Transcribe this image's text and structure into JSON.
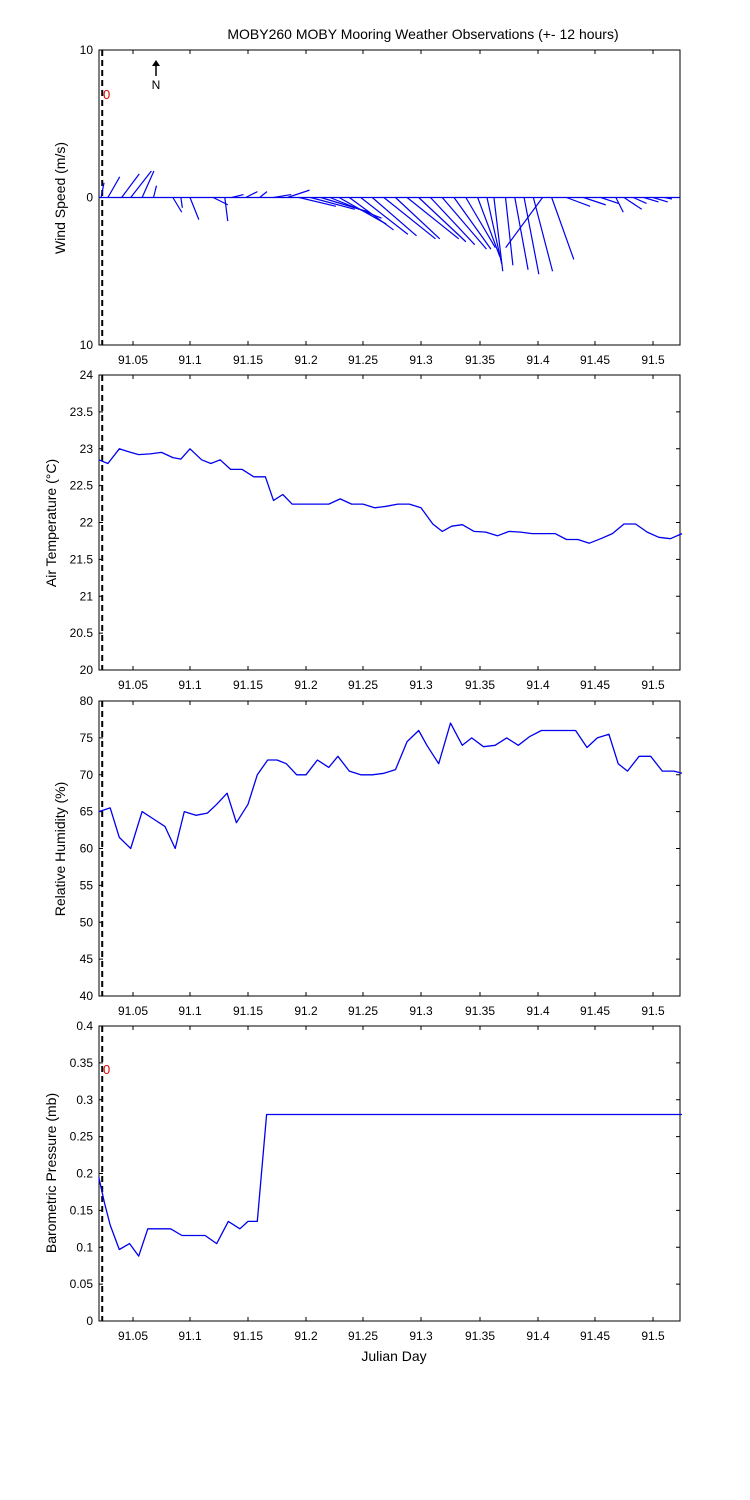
{
  "title": "MOBY260 MOBY Mooring Weather Observations (+- 12 hours)",
  "xlabel": "Julian Day",
  "north_label": "N",
  "zero_marker_label": "0",
  "colors": {
    "series": "#0000ee",
    "marker": "#000000",
    "zero_label": "#e00000"
  },
  "chart_data": [
    {
      "type": "line",
      "name": "wind",
      "ylabel": "Wind Speed (m/s)",
      "xlim": [
        91.02,
        91.525
      ],
      "ylim": [
        -10,
        10
      ],
      "yticks": [
        10,
        0,
        10
      ],
      "xticks": [
        "91.05",
        "91.1",
        "91.15",
        "91.2",
        "91.25",
        "91.3",
        "91.35",
        "91.4",
        "91.45",
        "91.5"
      ],
      "marker_x": 91.023,
      "grid": false,
      "vectors": [
        {
          "x": 91.022,
          "u": 0.2,
          "v": 1.0
        },
        {
          "x": 91.028,
          "u": 0.8,
          "v": 1.4
        },
        {
          "x": 91.04,
          "u": 1.2,
          "v": 1.6
        },
        {
          "x": 91.048,
          "u": 1.4,
          "v": 1.8
        },
        {
          "x": 91.058,
          "u": 0.8,
          "v": 1.8
        },
        {
          "x": 91.068,
          "u": 0.2,
          "v": 0.8
        },
        {
          "x": 91.085,
          "u": 0.6,
          "v": -1.0
        },
        {
          "x": 91.092,
          "u": 0.1,
          "v": -0.7
        },
        {
          "x": 91.1,
          "u": 0.6,
          "v": -1.5
        },
        {
          "x": 91.12,
          "u": 1.0,
          "v": -0.5
        },
        {
          "x": 91.13,
          "u": 0.2,
          "v": -1.6
        },
        {
          "x": 91.136,
          "u": 0.8,
          "v": 0.2
        },
        {
          "x": 91.148,
          "u": 0.8,
          "v": 0.4
        },
        {
          "x": 91.16,
          "u": 0.5,
          "v": 0.4
        },
        {
          "x": 91.172,
          "u": 1.2,
          "v": 0.2
        },
        {
          "x": 91.184,
          "u": 1.5,
          "v": 0.5
        },
        {
          "x": 91.194,
          "u": 2.5,
          "v": -0.6
        },
        {
          "x": 91.204,
          "u": 3.0,
          "v": -0.8
        },
        {
          "x": 91.213,
          "u": 3.3,
          "v": -1.0
        },
        {
          "x": 91.221,
          "u": 3.5,
          "v": -1.4
        },
        {
          "x": 91.229,
          "u": 3.2,
          "v": -1.8
        },
        {
          "x": 91.238,
          "u": 3.0,
          "v": -2.2
        },
        {
          "x": 91.248,
          "u": 3.2,
          "v": -2.5
        },
        {
          "x": 91.258,
          "u": 3.0,
          "v": -2.6
        },
        {
          "x": 91.268,
          "u": 3.5,
          "v": -2.8
        },
        {
          "x": 91.278,
          "u": 3.0,
          "v": -2.8
        },
        {
          "x": 91.288,
          "u": 3.5,
          "v": -2.8
        },
        {
          "x": 91.298,
          "u": 3.2,
          "v": -3.0
        },
        {
          "x": 91.308,
          "u": 3.0,
          "v": -3.2
        },
        {
          "x": 91.318,
          "u": 3.0,
          "v": -3.5
        },
        {
          "x": 91.328,
          "u": 2.5,
          "v": -3.5
        },
        {
          "x": 91.338,
          "u": 2.0,
          "v": -3.4
        },
        {
          "x": 91.348,
          "u": 1.5,
          "v": -4.0
        },
        {
          "x": 91.356,
          "u": 1.0,
          "v": -4.5
        },
        {
          "x": 91.362,
          "u": 0.6,
          "v": -5.0
        },
        {
          "x": 91.372,
          "u": 0.5,
          "v": -4.6
        },
        {
          "x": 91.38,
          "u": 0.9,
          "v": -4.9
        },
        {
          "x": 91.388,
          "u": 1.0,
          "v": -5.2
        },
        {
          "x": 91.396,
          "u": 1.3,
          "v": -5.0
        },
        {
          "x": 91.404,
          "u": -2.5,
          "v": -3.4
        },
        {
          "x": 91.412,
          "u": 1.5,
          "v": -4.2
        },
        {
          "x": 91.425,
          "u": 1.6,
          "v": -0.6
        },
        {
          "x": 91.44,
          "u": 1.5,
          "v": -0.5
        },
        {
          "x": 91.455,
          "u": 1.2,
          "v": -0.4
        },
        {
          "x": 91.468,
          "u": 0.5,
          "v": -1.0
        },
        {
          "x": 91.475,
          "u": 1.2,
          "v": -0.8
        },
        {
          "x": 91.483,
          "u": 0.9,
          "v": -0.4
        },
        {
          "x": 91.492,
          "u": 1.0,
          "v": -0.3
        },
        {
          "x": 91.5,
          "u": 1.0,
          "v": -0.3
        },
        {
          "x": 91.51,
          "u": 0.5,
          "v": -0.1
        }
      ]
    },
    {
      "type": "line",
      "name": "air_temp",
      "ylabel": "Air Temperature (°C)",
      "xlim": [
        91.02,
        91.525
      ],
      "ylim": [
        20,
        24
      ],
      "yticks": [
        "20",
        "20.5",
        "21",
        "21.5",
        "22",
        "22.5",
        "23",
        "23.5",
        "24"
      ],
      "xticks": [
        "91.05",
        "91.1",
        "91.15",
        "91.2",
        "91.25",
        "91.3",
        "91.35",
        "91.4",
        "91.45",
        "91.5"
      ],
      "marker_x": 91.023,
      "grid": false,
      "x": [
        91.02,
        91.028,
        91.038,
        91.048,
        91.055,
        91.065,
        91.075,
        91.085,
        91.092,
        91.1,
        91.11,
        91.118,
        91.126,
        91.135,
        91.145,
        91.155,
        91.165,
        91.172,
        91.18,
        91.188,
        91.2,
        91.21,
        91.22,
        91.23,
        91.24,
        91.25,
        91.26,
        91.27,
        91.28,
        91.29,
        91.3,
        91.31,
        91.318,
        91.326,
        91.335,
        91.345,
        91.355,
        91.365,
        91.375,
        91.385,
        91.395,
        91.405,
        91.415,
        91.425,
        91.435,
        91.445,
        91.455,
        91.465,
        91.475,
        91.485,
        91.495,
        91.505,
        91.515,
        91.525
      ],
      "y": [
        22.85,
        22.8,
        23.0,
        22.95,
        22.92,
        22.93,
        22.95,
        22.88,
        22.86,
        23.0,
        22.85,
        22.8,
        22.85,
        22.72,
        22.72,
        22.62,
        22.62,
        22.3,
        22.38,
        22.25,
        22.25,
        22.25,
        22.25,
        22.32,
        22.25,
        22.25,
        22.2,
        22.22,
        22.25,
        22.25,
        22.2,
        21.98,
        21.88,
        21.95,
        21.97,
        21.88,
        21.87,
        21.82,
        21.88,
        21.87,
        21.85,
        21.85,
        21.85,
        21.77,
        21.77,
        21.72,
        21.78,
        21.85,
        21.98,
        21.98,
        21.87,
        21.8,
        21.78,
        21.85
      ]
    },
    {
      "type": "line",
      "name": "humidity",
      "ylabel": "Relative Humidity (%)",
      "xlim": [
        91.02,
        91.525
      ],
      "ylim": [
        40,
        80
      ],
      "yticks": [
        "40",
        "45",
        "50",
        "55",
        "60",
        "65",
        "70",
        "75",
        "80"
      ],
      "xticks": [
        "91.05",
        "91.1",
        "91.15",
        "91.2",
        "91.25",
        "91.3",
        "91.35",
        "91.4",
        "91.45",
        "91.5"
      ],
      "marker_x": 91.023,
      "grid": false,
      "x": [
        91.02,
        91.03,
        91.038,
        91.048,
        91.058,
        91.068,
        91.078,
        91.087,
        91.095,
        91.105,
        91.115,
        91.123,
        91.132,
        91.14,
        91.15,
        91.158,
        91.167,
        91.175,
        91.183,
        91.192,
        91.2,
        91.21,
        91.22,
        91.228,
        91.238,
        91.248,
        91.258,
        91.268,
        91.278,
        91.288,
        91.298,
        91.305,
        91.315,
        91.325,
        91.335,
        91.343,
        91.353,
        91.363,
        91.373,
        91.383,
        91.393,
        91.403,
        91.413,
        91.423,
        91.433,
        91.443,
        91.452,
        91.462,
        91.47,
        91.478,
        91.488,
        91.498,
        91.508,
        91.518,
        91.525
      ],
      "y": [
        65.0,
        65.5,
        61.5,
        60.0,
        65.0,
        64.0,
        63.0,
        60.0,
        65.0,
        64.5,
        64.8,
        66.0,
        67.5,
        63.5,
        66.0,
        70.0,
        72.0,
        72.0,
        71.5,
        70.0,
        70.0,
        72.0,
        71.0,
        72.5,
        70.5,
        70.0,
        70.0,
        70.2,
        70.7,
        74.5,
        76.0,
        74.0,
        71.5,
        77.0,
        74.0,
        75.0,
        73.8,
        74.0,
        75.0,
        74.0,
        75.2,
        76.0,
        76.0,
        76.0,
        76.0,
        73.7,
        75.0,
        75.5,
        71.5,
        70.5,
        72.5,
        72.5,
        70.5,
        70.5,
        70.2
      ]
    },
    {
      "type": "line",
      "name": "pressure",
      "ylabel": "Barometric Pressure (mb)",
      "xlim": [
        91.02,
        91.525
      ],
      "ylim": [
        0,
        0.4
      ],
      "yticks": [
        "0",
        "0.05",
        "0.1",
        "0.15",
        "0.2",
        "0.25",
        "0.3",
        "0.35",
        "0.4"
      ],
      "xticks": [
        "91.05",
        "91.1",
        "91.15",
        "91.2",
        "91.25",
        "91.3",
        "91.35",
        "91.4",
        "91.45",
        "91.5"
      ],
      "marker_x": 91.023,
      "grid": false,
      "x": [
        91.02,
        91.025,
        91.03,
        91.038,
        91.047,
        91.055,
        91.063,
        91.073,
        91.083,
        91.093,
        91.103,
        91.113,
        91.123,
        91.133,
        91.143,
        91.15,
        91.158,
        91.166,
        91.174,
        91.2,
        91.3,
        91.4,
        91.5,
        91.525
      ],
      "y": [
        0.195,
        0.16,
        0.13,
        0.097,
        0.105,
        0.088,
        0.125,
        0.125,
        0.125,
        0.116,
        0.116,
        0.116,
        0.105,
        0.135,
        0.125,
        0.135,
        0.135,
        0.28,
        0.28,
        0.28,
        0.28,
        0.28,
        0.28,
        0.28
      ]
    }
  ]
}
